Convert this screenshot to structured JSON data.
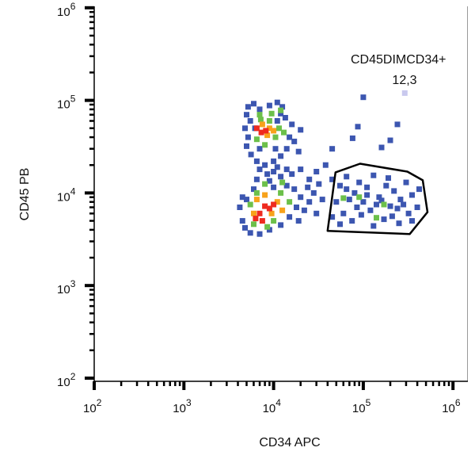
{
  "chart_data": {
    "type": "scatter",
    "title": "",
    "xlabel": "CD34 APC",
    "ylabel": "CD45 PB",
    "xscale": "log",
    "yscale": "log",
    "xlim": [
      100,
      1450000
    ],
    "ylim": [
      100,
      1000000
    ],
    "x_ticks": [
      {
        "base": "10",
        "exp": "2"
      },
      {
        "base": "10",
        "exp": "3"
      },
      {
        "base": "10",
        "exp": "4"
      },
      {
        "base": "10",
        "exp": "5"
      },
      {
        "base": "10",
        "exp": "6"
      }
    ],
    "y_ticks": [
      {
        "base": "10",
        "exp": "2"
      },
      {
        "base": "10",
        "exp": "3"
      },
      {
        "base": "10",
        "exp": "4"
      },
      {
        "base": "10",
        "exp": "5"
      },
      {
        "base": "10",
        "exp": "6"
      }
    ],
    "grid": false,
    "density_colors": {
      "-1": "#c9c9ee",
      "0": "#3c56b0",
      "1": "#6cc04a",
      "2": "#f7a21b",
      "3": "#ee2a1f"
    },
    "gate": {
      "name": "CD45DIMCD34+",
      "value": "12,3",
      "polygon": [
        [
          40000,
          3900
        ],
        [
          49000,
          16700
        ],
        [
          92000,
          20700
        ],
        [
          310000,
          17000
        ],
        [
          460000,
          13700
        ],
        [
          520000,
          6200
        ],
        [
          330000,
          3600
        ]
      ]
    },
    "points": [
      [
        5200,
        85000,
        0
      ],
      [
        6000,
        92000,
        0
      ],
      [
        7000,
        80000,
        0
      ],
      [
        9000,
        88000,
        0
      ],
      [
        11000,
        95000,
        0
      ],
      [
        12500,
        85000,
        0
      ],
      [
        5000,
        70000,
        0
      ],
      [
        5500,
        60000,
        0
      ],
      [
        4800,
        50000,
        0
      ],
      [
        5200,
        40000,
        0
      ],
      [
        5000,
        32000,
        0
      ],
      [
        5600,
        26000,
        0
      ],
      [
        6500,
        22000,
        0
      ],
      [
        8000,
        20000,
        0
      ],
      [
        10000,
        22000,
        0
      ],
      [
        12000,
        25000,
        0
      ],
      [
        14000,
        30000,
        0
      ],
      [
        15000,
        40000,
        0
      ],
      [
        16000,
        55000,
        0
      ],
      [
        13500,
        65000,
        0
      ],
      [
        12000,
        72000,
        0
      ],
      [
        10500,
        30000,
        0
      ],
      [
        7000,
        30000,
        0
      ],
      [
        6200,
        50000,
        0
      ],
      [
        11000,
        60000,
        0
      ],
      [
        17000,
        36000,
        0
      ],
      [
        20000,
        48000,
        0
      ],
      [
        19000,
        28000,
        0
      ],
      [
        7000,
        70000,
        1
      ],
      [
        9500,
        72000,
        1
      ],
      [
        12000,
        78000,
        1
      ],
      [
        6500,
        38000,
        1
      ],
      [
        8000,
        33000,
        1
      ],
      [
        10500,
        40000,
        1
      ],
      [
        11500,
        50000,
        1
      ],
      [
        9000,
        60000,
        1
      ],
      [
        13000,
        45000,
        1
      ],
      [
        7200,
        62000,
        1
      ],
      [
        7500,
        55000,
        2
      ],
      [
        9000,
        50000,
        2
      ],
      [
        8500,
        42000,
        2
      ],
      [
        10000,
        47000,
        2
      ],
      [
        6500,
        50000,
        3
      ],
      [
        7300,
        45000,
        3
      ],
      [
        8200,
        47000,
        3
      ],
      [
        7000,
        18000,
        0
      ],
      [
        8500,
        16000,
        0
      ],
      [
        10000,
        17000,
        0
      ],
      [
        12000,
        15000,
        0
      ],
      [
        6500,
        14000,
        0
      ],
      [
        9000,
        13500,
        0
      ],
      [
        11000,
        19000,
        0
      ],
      [
        14000,
        18000,
        0
      ],
      [
        16000,
        16000,
        0
      ],
      [
        20000,
        18000,
        0
      ],
      [
        25000,
        14000,
        0
      ],
      [
        8000,
        12500,
        1
      ],
      [
        12500,
        13000,
        1
      ],
      [
        4500,
        9000,
        0
      ],
      [
        4200,
        7000,
        0
      ],
      [
        4500,
        5000,
        0
      ],
      [
        4800,
        4200,
        0
      ],
      [
        5500,
        3700,
        0
      ],
      [
        7000,
        3600,
        0
      ],
      [
        9000,
        4000,
        0
      ],
      [
        12000,
        4500,
        0
      ],
      [
        15000,
        5500,
        0
      ],
      [
        18000,
        7000,
        0
      ],
      [
        20000,
        9000,
        0
      ],
      [
        17000,
        11000,
        0
      ],
      [
        14000,
        12000,
        0
      ],
      [
        10000,
        11500,
        0
      ],
      [
        6000,
        11000,
        0
      ],
      [
        5000,
        8500,
        0
      ],
      [
        22000,
        6500,
        0
      ],
      [
        25000,
        8000,
        0
      ],
      [
        28000,
        10000,
        0
      ],
      [
        30000,
        6000,
        0
      ],
      [
        35000,
        8500,
        0
      ],
      [
        24000,
        11500,
        0
      ],
      [
        32000,
        12500,
        0
      ],
      [
        19000,
        5000,
        0
      ],
      [
        5500,
        7500,
        1
      ],
      [
        6000,
        4600,
        1
      ],
      [
        8500,
        4300,
        1
      ],
      [
        12000,
        10000,
        1
      ],
      [
        15000,
        8000,
        1
      ],
      [
        6500,
        10000,
        1
      ],
      [
        10000,
        5000,
        1
      ],
      [
        6500,
        8500,
        2
      ],
      [
        8000,
        9500,
        2
      ],
      [
        11000,
        8000,
        2
      ],
      [
        12500,
        6500,
        2
      ],
      [
        6000,
        6000,
        2
      ],
      [
        9500,
        6000,
        2
      ],
      [
        7000,
        6000,
        3
      ],
      [
        8000,
        7200,
        3
      ],
      [
        9000,
        6800,
        3
      ],
      [
        6300,
        5300,
        3
      ],
      [
        7500,
        5000,
        3
      ],
      [
        10000,
        7500,
        3
      ],
      [
        45000,
        14000,
        0
      ],
      [
        55000,
        12000,
        0
      ],
      [
        65000,
        15000,
        0
      ],
      [
        80000,
        10000,
        0
      ],
      [
        90000,
        13000,
        0
      ],
      [
        110000,
        11500,
        0
      ],
      [
        130000,
        15500,
        0
      ],
      [
        150000,
        9000,
        0
      ],
      [
        180000,
        12000,
        0
      ],
      [
        220000,
        10500,
        0
      ],
      [
        260000,
        8500,
        0
      ],
      [
        300000,
        13000,
        0
      ],
      [
        350000,
        9500,
        0
      ],
      [
        400000,
        7000,
        0
      ],
      [
        420000,
        11000,
        0
      ],
      [
        50000,
        8000,
        0
      ],
      [
        60000,
        6000,
        0
      ],
      [
        70000,
        8500,
        0
      ],
      [
        85000,
        7000,
        0
      ],
      [
        100000,
        8000,
        0
      ],
      [
        120000,
        6500,
        0
      ],
      [
        140000,
        7500,
        0
      ],
      [
        160000,
        8300,
        0
      ],
      [
        200000,
        7200,
        0
      ],
      [
        240000,
        6800,
        0
      ],
      [
        280000,
        7500,
        0
      ],
      [
        320000,
        6000,
        0
      ],
      [
        45000,
        5500,
        0
      ],
      [
        55000,
        4600,
        0
      ],
      [
        75000,
        5000,
        0
      ],
      [
        95000,
        5800,
        0
      ],
      [
        130000,
        4400,
        0
      ],
      [
        170000,
        5200,
        0
      ],
      [
        210000,
        5600,
        0
      ],
      [
        250000,
        4700,
        0
      ],
      [
        350000,
        5000,
        0
      ],
      [
        65000,
        11000,
        0
      ],
      [
        190000,
        14500,
        0
      ],
      [
        110000,
        9500,
        0
      ],
      [
        90000,
        9000,
        1
      ],
      [
        170000,
        7500,
        1
      ],
      [
        140000,
        5400,
        1
      ],
      [
        60000,
        8800,
        1
      ],
      [
        100000,
        108000,
        0
      ],
      [
        87000,
        52000,
        0
      ],
      [
        76000,
        39000,
        0
      ],
      [
        240000,
        55000,
        0
      ],
      [
        200000,
        37000,
        0
      ],
      [
        160000,
        31000,
        0
      ],
      [
        38000,
        20000,
        0
      ],
      [
        30000,
        17000,
        0
      ],
      [
        45000,
        30000,
        0
      ],
      [
        290000,
        120000,
        -1
      ]
    ]
  }
}
